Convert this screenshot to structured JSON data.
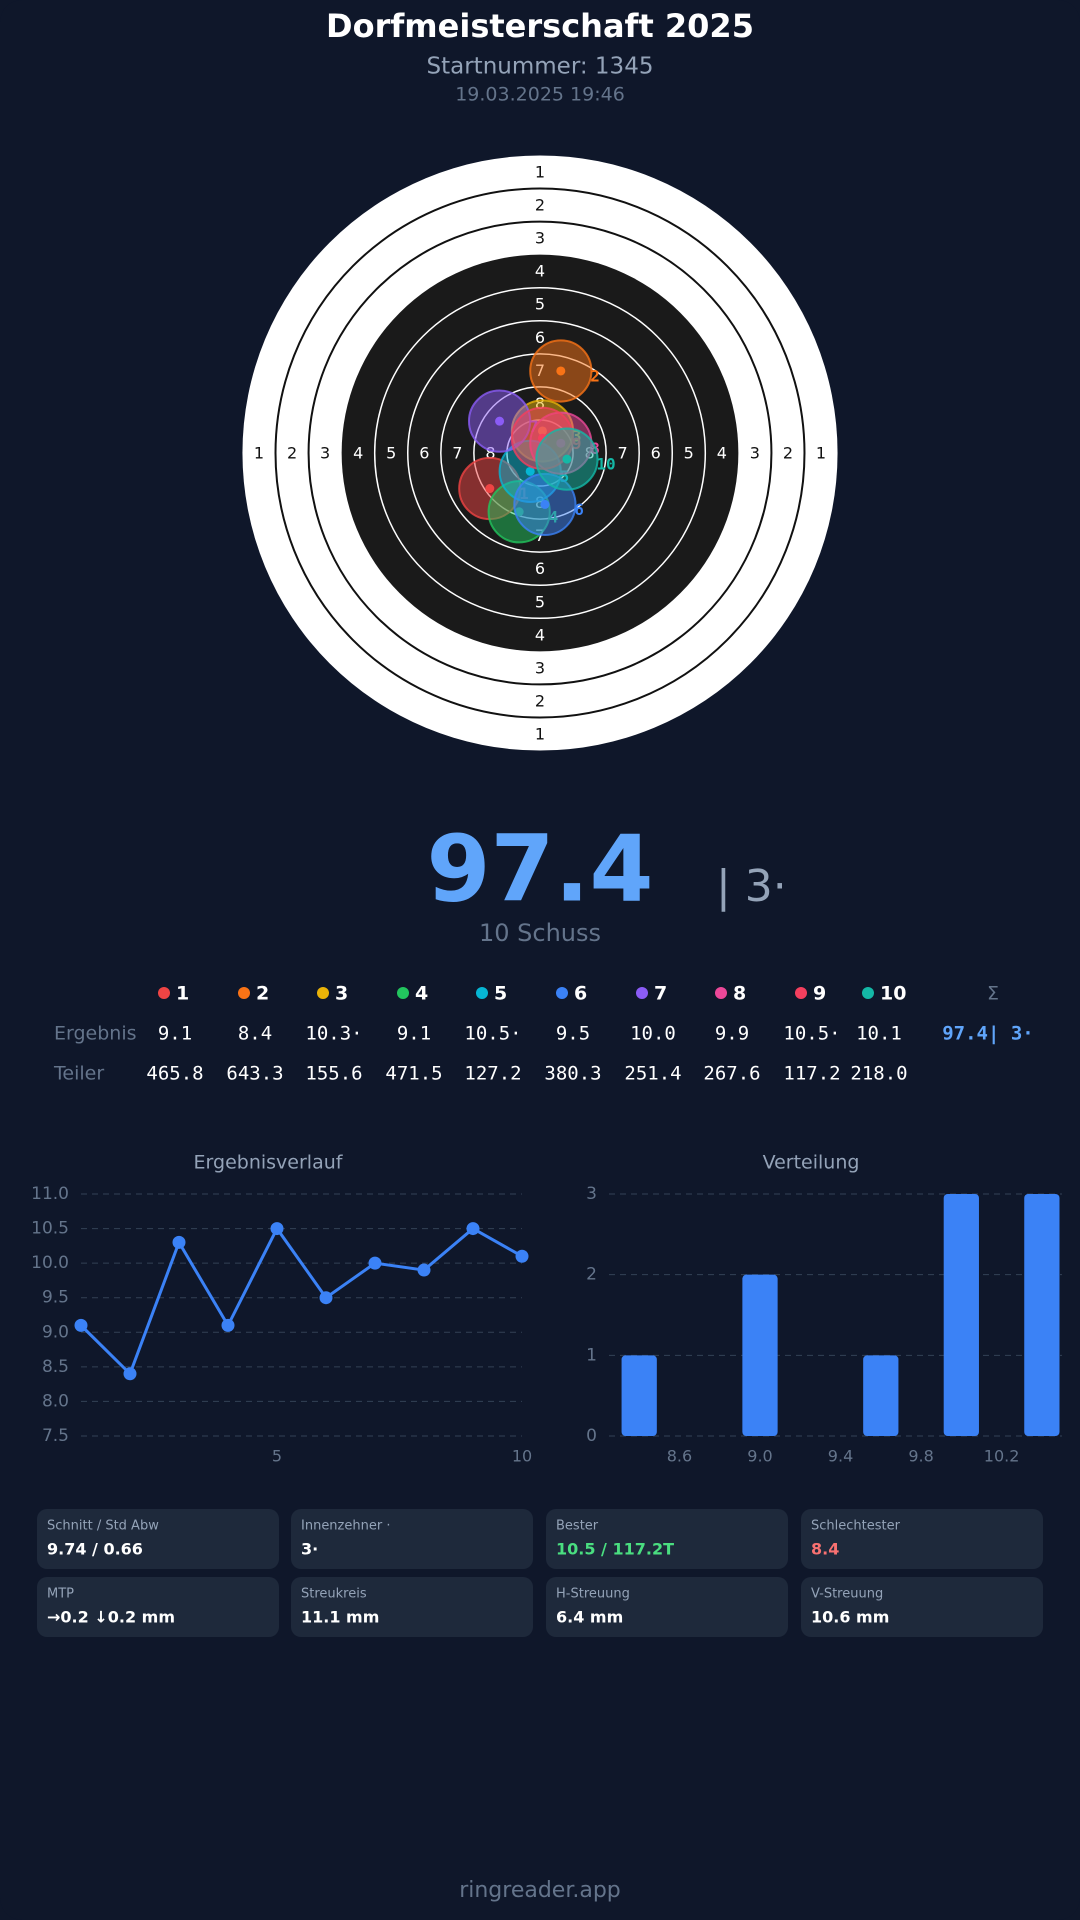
{
  "header": {
    "title": "Dorfmeisterschaft 2025",
    "start_number": "Startnummer: 1345",
    "datetime": "19.03.2025 19:46"
  },
  "target": {
    "ring_labels": [
      "1",
      "2",
      "3",
      "4",
      "5",
      "6",
      "7",
      "8"
    ],
    "shots": [
      {
        "label": "1",
        "color": "#ef4444",
        "x": -41,
        "y": 29
      },
      {
        "label": "2",
        "color": "#f97316",
        "x": 17,
        "y": -67
      },
      {
        "label": "3",
        "color": "#eab308",
        "x": 2,
        "y": -18
      },
      {
        "label": "4",
        "color": "#22c55e",
        "x": -17,
        "y": 48
      },
      {
        "label": "5",
        "color": "#06b6d4",
        "x": -8,
        "y": 15
      },
      {
        "label": "6",
        "color": "#3b82f6",
        "x": 4,
        "y": 42
      },
      {
        "label": "7",
        "color": "#8b5cf6",
        "x": -33,
        "y": -26
      },
      {
        "label": "8",
        "color": "#ec4899",
        "x": 17,
        "y": -8
      },
      {
        "label": "9",
        "color": "#f43f5e",
        "x": 2,
        "y": -12
      },
      {
        "label": "10",
        "color": "#14b8a6",
        "x": 22,
        "y": 5
      }
    ]
  },
  "score": {
    "total": "97.4",
    "inner_tens": "| 3·",
    "shots": "10 Schuss"
  },
  "table": {
    "sum_header": "Σ",
    "rows": [
      {
        "label": "Ergebnis",
        "values": [
          "9.1",
          "8.4",
          "10.3·",
          "9.1",
          "10.5·",
          "9.5",
          "10.0",
          "9.9",
          "10.5·",
          "10.1"
        ],
        "total": "97.4| 3·"
      },
      {
        "label": "Teiler",
        "values": [
          "465.8",
          "643.3",
          "155.6",
          "471.5",
          "127.2",
          "380.3",
          "251.4",
          "267.6",
          "117.2",
          "218.0"
        ]
      }
    ]
  },
  "chart_data": [
    {
      "type": "line",
      "title": "Ergebnisverlauf",
      "color": "#3b82f6",
      "x": [
        1,
        2,
        3,
        4,
        5,
        6,
        7,
        8,
        9,
        10
      ],
      "values": [
        9.1,
        8.4,
        10.3,
        9.1,
        10.5,
        9.5,
        10.0,
        9.9,
        10.5,
        10.1
      ],
      "xlim": [
        1,
        10
      ],
      "xticks": [
        5,
        10
      ],
      "ylim": [
        7.5,
        11.0
      ],
      "yticks": [
        7.5,
        {
          "value": 8,
          "label": "8.0"
        },
        8.5,
        {
          "value": 9,
          "label": "9.0"
        },
        9.5,
        {
          "value": 10,
          "label": "10.0"
        },
        10.5,
        {
          "value": 11,
          "label": "11.0"
        }
      ],
      "grid": true
    },
    {
      "type": "histogram",
      "title": "Verteilung",
      "color": "#3b82f6",
      "bins": [
        8.3,
        8.5,
        8.7,
        8.9,
        9.1,
        9.3,
        9.5,
        9.7,
        9.9,
        10.1,
        10.3,
        10.5
      ],
      "values": [
        1,
        0,
        0,
        2,
        0,
        0,
        1,
        0,
        3,
        0,
        3
      ],
      "xlim": [
        8.25,
        10.5
      ],
      "xticks": [
        8.6,
        {
          "value": 9,
          "label": "9.0"
        },
        9.4,
        9.8,
        10.2
      ],
      "ylim": [
        0,
        3
      ],
      "yticks": [
        0,
        1,
        2,
        3
      ],
      "grid": true
    }
  ],
  "stats": [
    {
      "label": "Schnitt / Std Abw",
      "value": "9.74 / 0.66"
    },
    {
      "label": "Innenzehner ·",
      "value": "3·"
    },
    {
      "label": "Bester",
      "value": "10.5 / 117.2T",
      "color": "#4ade80"
    },
    {
      "label": "Schlechtester",
      "value": "8.4",
      "color": "#f87171"
    },
    {
      "label": "MTP",
      "value": "→0.2 ↓0.2 mm"
    },
    {
      "label": "Streukreis",
      "value": "11.1 mm"
    },
    {
      "label": "H-Streuung",
      "value": "6.4 mm"
    },
    {
      "label": "V-Streuung",
      "value": "10.6 mm"
    }
  ],
  "footer": "ringreader.app"
}
